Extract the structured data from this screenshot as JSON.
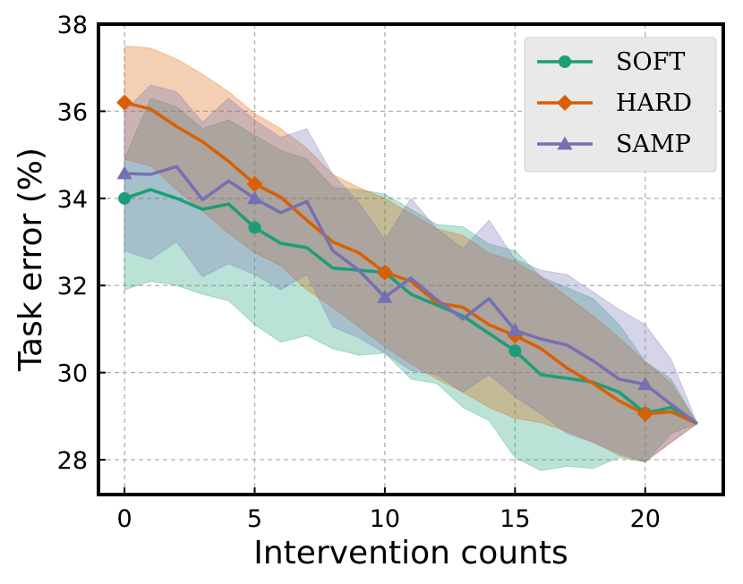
{
  "chart_data": {
    "type": "line",
    "title": "",
    "xlabel": "Intervention counts",
    "ylabel": "Task error (%)",
    "xlim": [
      -1,
      23
    ],
    "ylim": [
      27.2,
      38
    ],
    "xticks": [
      0,
      5,
      10,
      15,
      20
    ],
    "yticks": [
      28,
      30,
      32,
      34,
      36,
      38
    ],
    "grid": true,
    "legend_position": "top-right",
    "x": [
      0,
      1,
      2,
      3,
      4,
      5,
      6,
      7,
      8,
      9,
      10,
      11,
      12,
      13,
      14,
      15,
      16,
      17,
      18,
      19,
      20,
      21,
      22
    ],
    "series": [
      {
        "name": "SOFT",
        "color": "#1b9e77",
        "marker": "circle",
        "values": [
          34.0,
          34.2,
          34.0,
          33.75,
          33.87,
          33.33,
          32.97,
          32.87,
          32.4,
          32.35,
          32.3,
          31.8,
          31.55,
          31.3,
          30.9,
          30.5,
          29.95,
          29.87,
          29.78,
          29.55,
          29.07,
          29.2,
          28.83
        ],
        "lower": [
          31.9,
          32.1,
          32.0,
          31.8,
          31.65,
          31.1,
          30.7,
          30.85,
          30.55,
          30.4,
          30.45,
          29.85,
          29.75,
          29.2,
          28.9,
          28.05,
          27.75,
          27.85,
          27.8,
          28.05,
          27.95,
          28.6,
          28.83
        ],
        "upper": [
          34.9,
          36.3,
          36.1,
          35.6,
          35.8,
          35.45,
          35.1,
          34.9,
          34.25,
          34.2,
          34.1,
          33.75,
          33.4,
          33.35,
          32.95,
          32.8,
          32.2,
          31.95,
          31.7,
          31.1,
          30.25,
          29.85,
          28.83
        ],
        "marker_indices": [
          0,
          5,
          10,
          15,
          20
        ]
      },
      {
        "name": "HARD",
        "color": "#d95f02",
        "marker": "diamond",
        "values": [
          36.2,
          36.05,
          35.65,
          35.3,
          34.85,
          34.33,
          34.03,
          33.5,
          33.0,
          32.75,
          32.3,
          32.1,
          31.6,
          31.5,
          31.1,
          30.85,
          30.55,
          30.1,
          29.75,
          29.35,
          29.05,
          29.1,
          28.83
        ],
        "lower": [
          34.9,
          34.75,
          34.2,
          33.7,
          33.2,
          32.75,
          32.45,
          31.9,
          31.5,
          31.05,
          30.6,
          30.2,
          29.85,
          29.55,
          29.2,
          28.95,
          28.85,
          28.65,
          28.4,
          28.1,
          27.95,
          28.4,
          28.83
        ],
        "upper": [
          37.5,
          37.45,
          37.2,
          36.85,
          36.45,
          35.95,
          35.6,
          35.15,
          34.55,
          34.25,
          34.0,
          33.65,
          33.3,
          33.15,
          32.75,
          32.55,
          32.2,
          31.75,
          31.3,
          30.8,
          30.25,
          29.75,
          28.83
        ],
        "marker_indices": [
          0,
          5,
          10,
          15,
          20
        ]
      },
      {
        "name": "SAMP",
        "color": "#7570b3",
        "marker": "triangle",
        "values": [
          34.57,
          34.55,
          34.73,
          33.97,
          34.4,
          34.0,
          33.67,
          33.93,
          32.8,
          32.35,
          31.73,
          32.17,
          31.67,
          31.23,
          31.7,
          30.97,
          30.77,
          30.63,
          30.27,
          29.85,
          29.73,
          29.27,
          28.83
        ],
        "lower": [
          32.8,
          32.6,
          33.0,
          32.2,
          32.5,
          32.25,
          31.9,
          32.25,
          31.05,
          30.8,
          30.45,
          30.05,
          29.95,
          29.55,
          29.95,
          29.45,
          29.05,
          28.6,
          28.4,
          28.15,
          27.95,
          28.4,
          28.83
        ],
        "upper": [
          36.0,
          36.6,
          36.45,
          35.75,
          36.3,
          35.8,
          35.4,
          35.6,
          34.55,
          33.9,
          33.05,
          34.0,
          33.3,
          32.85,
          33.5,
          32.6,
          32.35,
          32.25,
          31.85,
          31.45,
          31.1,
          30.3,
          28.83
        ],
        "marker_indices": [
          0,
          5,
          10,
          15,
          20
        ]
      }
    ]
  }
}
